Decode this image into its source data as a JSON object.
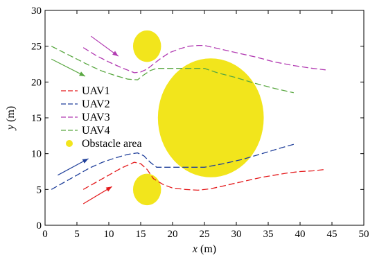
{
  "chart_data": {
    "type": "line",
    "title": "",
    "xlabel": {
      "var": "x",
      "unit": " (m)"
    },
    "ylabel": {
      "var": "y",
      "unit": " (m)"
    },
    "xlim": [
      0,
      50
    ],
    "ylim": [
      0,
      30
    ],
    "xticks": [
      "0",
      "5",
      "10",
      "15",
      "20",
      "25",
      "30",
      "35",
      "40",
      "45",
      "50"
    ],
    "yticks": [
      "0",
      "5",
      "10",
      "15",
      "20",
      "25",
      "30"
    ],
    "grid": false,
    "legend_position": "left",
    "series": [
      {
        "name": "UAV1",
        "color": "#e41a1c",
        "dash": "dashed",
        "points": [
          [
            6,
            5
          ],
          [
            8,
            6
          ],
          [
            10,
            7
          ],
          [
            12,
            8
          ],
          [
            14,
            8.8
          ],
          [
            15,
            8.6
          ],
          [
            16,
            7.8
          ],
          [
            17,
            6.5
          ],
          [
            18.5,
            5.7
          ],
          [
            20,
            5.2
          ],
          [
            22,
            5
          ],
          [
            24,
            4.9
          ],
          [
            26,
            5.1
          ],
          [
            28,
            5.5
          ],
          [
            30,
            5.9
          ],
          [
            32,
            6.3
          ],
          [
            34,
            6.7
          ],
          [
            36,
            7
          ],
          [
            38,
            7.3
          ],
          [
            40,
            7.5
          ],
          [
            42,
            7.6
          ],
          [
            44,
            7.8
          ]
        ]
      },
      {
        "name": "UAV2",
        "color": "#1f3f9a",
        "dash": "dashed",
        "points": [
          [
            1,
            5
          ],
          [
            3,
            6
          ],
          [
            5,
            7
          ],
          [
            7,
            8
          ],
          [
            9,
            8.8
          ],
          [
            11,
            9.4
          ],
          [
            13,
            9.9
          ],
          [
            14.5,
            10.1
          ],
          [
            15.5,
            9.7
          ],
          [
            16.5,
            8.8
          ],
          [
            17.5,
            8.1
          ],
          [
            19,
            8.1
          ],
          [
            22,
            8.1
          ],
          [
            25,
            8.1
          ],
          [
            28,
            8.6
          ],
          [
            31,
            9.2
          ],
          [
            34,
            10
          ],
          [
            37,
            10.8
          ],
          [
            39,
            11.3
          ]
        ]
      },
      {
        "name": "UAV3",
        "color": "#b23bb2",
        "dash": "dashed",
        "points": [
          [
            6,
            24.8
          ],
          [
            8,
            23.7
          ],
          [
            10,
            22.8
          ],
          [
            12,
            22
          ],
          [
            14,
            21.3
          ],
          [
            15,
            21.4
          ],
          [
            16,
            21.8
          ],
          [
            17,
            22.5
          ],
          [
            18,
            23.2
          ],
          [
            19.5,
            24.1
          ],
          [
            21,
            24.6
          ],
          [
            22.5,
            25
          ],
          [
            24,
            25.1
          ],
          [
            25,
            25.1
          ],
          [
            27,
            24.7
          ],
          [
            30,
            24.1
          ],
          [
            33,
            23.5
          ],
          [
            36,
            22.8
          ],
          [
            39,
            22.3
          ],
          [
            42,
            21.9
          ],
          [
            44,
            21.7
          ]
        ]
      },
      {
        "name": "UAV4",
        "color": "#5aa842",
        "dash": "dashed",
        "points": [
          [
            1,
            25
          ],
          [
            3,
            24.1
          ],
          [
            5,
            23.2
          ],
          [
            7,
            22.3
          ],
          [
            9,
            21.5
          ],
          [
            11,
            20.9
          ],
          [
            13,
            20.4
          ],
          [
            14.5,
            20.3
          ],
          [
            15.5,
            21
          ],
          [
            16.5,
            21.6
          ],
          [
            17.5,
            21.9
          ],
          [
            20,
            21.9
          ],
          [
            22,
            21.9
          ],
          [
            25,
            21.9
          ],
          [
            27,
            21.3
          ],
          [
            30,
            20.6
          ],
          [
            33,
            19.8
          ],
          [
            36,
            19.1
          ],
          [
            39,
            18.5
          ]
        ]
      }
    ],
    "obstacles": [
      {
        "label": "Obstacle area",
        "cx": 16,
        "cy": 25,
        "r": 2.2
      },
      {
        "cx": 26,
        "cy": 15,
        "r": 8.3
      },
      {
        "cx": 16,
        "cy": 5,
        "r": 2.2
      }
    ],
    "obstacle_color": "#f2e51c",
    "arrows": [
      {
        "color": "#e41a1c",
        "from": [
          6,
          3
        ],
        "to": [
          10.5,
          5.4
        ]
      },
      {
        "color": "#1f3f9a",
        "from": [
          2,
          7
        ],
        "to": [
          6.8,
          9.3
        ]
      },
      {
        "color": "#b23bb2",
        "from": [
          7.2,
          26.4
        ],
        "to": [
          11.5,
          23.6
        ]
      },
      {
        "color": "#5aa842",
        "from": [
          1,
          23.2
        ],
        "to": [
          6.3,
          20.8
        ]
      }
    ],
    "legend": [
      "UAV1",
      "UAV2",
      "UAV3",
      "UAV4",
      "Obstacle area"
    ]
  }
}
